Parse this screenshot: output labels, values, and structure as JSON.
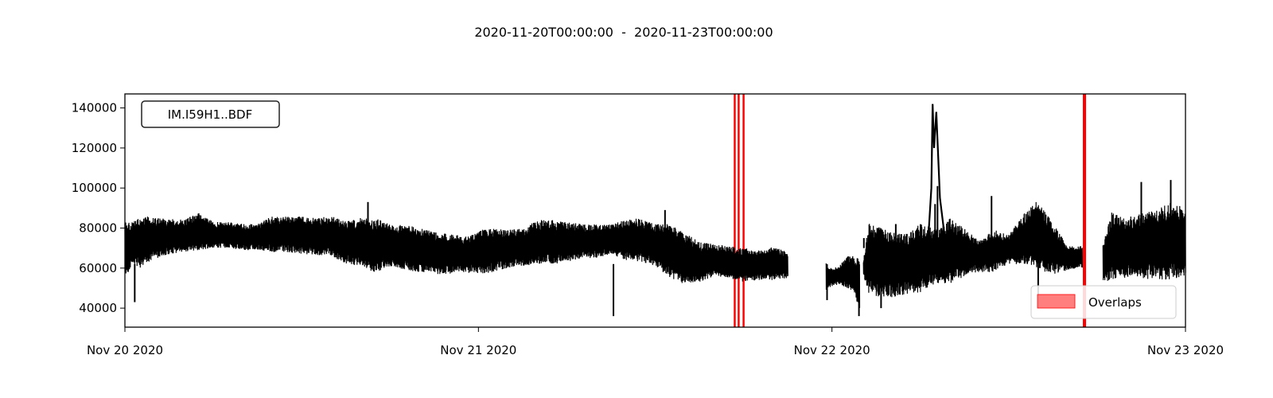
{
  "chart_data": {
    "type": "line",
    "title": "2020-11-20T00:00:00  -  2020-11-23T00:00:00",
    "station_label": "IM.I59H1..BDF",
    "xlabel": "",
    "ylabel": "",
    "xlim": [
      "2020-11-20T00:00:00",
      "2020-11-23T00:00:00"
    ],
    "ylim": [
      30500,
      147000
    ],
    "x_ticks": [
      {
        "t": "2020-11-20T00:00:00",
        "label": "Nov 20 2020"
      },
      {
        "t": "2020-11-21T00:00:00",
        "label": "Nov 21 2020"
      },
      {
        "t": "2020-11-22T00:00:00",
        "label": "Nov 22 2020"
      },
      {
        "t": "2020-11-23T00:00:00",
        "label": "Nov 23 2020"
      }
    ],
    "y_ticks": [
      {
        "v": 40000,
        "label": "40000"
      },
      {
        "v": 60000,
        "label": "60000"
      },
      {
        "v": 80000,
        "label": "80000"
      },
      {
        "v": 100000,
        "label": "100000"
      },
      {
        "v": 120000,
        "label": "120000"
      },
      {
        "v": 140000,
        "label": "140000"
      }
    ],
    "grid": false,
    "legend": {
      "position": "lower-right",
      "entries": [
        {
          "label": "Overlaps",
          "color": "#ff7f7f"
        }
      ]
    },
    "series_color": "#000000",
    "overlap_color": "#ff0000",
    "series": [
      {
        "name": "",
        "segments": [
          [
            [
              "2020-11-20T00:00:00",
              55000,
              84000
            ],
            [
              "2020-11-20T00:30:00",
              62000,
              83000
            ],
            [
              "2020-11-20T01:00:00",
              60000,
              85000
            ],
            [
              "2020-11-20T01:30:00",
              63000,
              86000
            ],
            [
              "2020-11-20T02:00:00",
              64000,
              85000
            ],
            [
              "2020-11-20T03:00:00",
              67000,
              85000
            ],
            [
              "2020-11-20T04:00:00",
              68000,
              84000
            ],
            [
              "2020-11-20T05:00:00",
              69000,
              88000
            ],
            [
              "2020-11-20T06:00:00",
              70000,
              83000
            ],
            [
              "2020-11-20T07:00:00",
              70000,
              83000
            ],
            [
              "2020-11-20T08:00:00",
              69000,
              82000
            ],
            [
              "2020-11-20T09:00:00",
              69000,
              82000
            ],
            [
              "2020-11-20T10:00:00",
              68000,
              86000
            ],
            [
              "2020-11-20T11:00:00",
              68000,
              86000
            ],
            [
              "2020-11-20T12:00:00",
              67000,
              86000
            ],
            [
              "2020-11-20T13:00:00",
              66000,
              85000
            ],
            [
              "2020-11-20T14:00:00",
              66000,
              86000
            ],
            [
              "2020-11-20T15:00:00",
              62000,
              84000
            ],
            [
              "2020-11-20T16:00:00",
              61000,
              85000
            ],
            [
              "2020-11-20T17:00:00",
              57000,
              85000
            ],
            [
              "2020-11-20T18:00:00",
              61000,
              82000
            ],
            [
              "2020-11-20T19:00:00",
              59000,
              82000
            ],
            [
              "2020-11-20T20:00:00",
              58000,
              80000
            ],
            [
              "2020-11-20T21:00:00",
              57000,
              78000
            ],
            [
              "2020-11-20T22:00:00",
              57000,
              77000
            ],
            [
              "2020-11-20T23:00:00",
              58000,
              76000
            ],
            [
              "2020-11-21T00:00:00",
              57000,
              79000
            ],
            [
              "2020-11-21T01:00:00",
              58000,
              80000
            ],
            [
              "2020-11-21T02:00:00",
              60000,
              79000
            ],
            [
              "2020-11-21T03:00:00",
              61000,
              80000
            ],
            [
              "2020-11-21T04:00:00",
              62000,
              84000
            ],
            [
              "2020-11-21T05:00:00",
              62000,
              84000
            ],
            [
              "2020-11-21T06:00:00",
              63000,
              83000
            ],
            [
              "2020-11-21T07:00:00",
              65000,
              82000
            ],
            [
              "2020-11-21T08:00:00",
              65000,
              82000
            ],
            [
              "2020-11-21T09:00:00",
              67000,
              82000
            ],
            [
              "2020-11-21T10:00:00",
              64000,
              84000
            ],
            [
              "2020-11-21T11:00:00",
              63000,
              85000
            ],
            [
              "2020-11-21T12:00:00",
              61000,
              82000
            ],
            [
              "2020-11-21T13:00:00",
              55000,
              82000
            ],
            [
              "2020-11-21T14:00:00",
              52000,
              78000
            ],
            [
              "2020-11-21T15:00:00",
              53000,
              73000
            ],
            [
              "2020-11-21T16:00:00",
              56000,
              72000
            ],
            [
              "2020-11-21T17:00:00",
              55000,
              71000
            ],
            [
              "2020-11-21T18:00:00",
              53000,
              70000
            ],
            [
              "2020-11-21T19:00:00",
              54000,
              69000
            ],
            [
              "2020-11-21T20:00:00",
              54000,
              71000
            ],
            [
              "2020-11-21T21:00:00",
              55000,
              68000
            ]
          ],
          [
            [
              "2020-11-21T23:36:00",
              49000,
              63000
            ],
            [
              "2020-11-21T23:45:00",
              50000,
              60000
            ],
            [
              "2020-11-22T00:00:00",
              51000,
              60000
            ],
            [
              "2020-11-22T00:30:00",
              52000,
              61000
            ],
            [
              "2020-11-22T01:00:00",
              50000,
              66000
            ],
            [
              "2020-11-22T01:30:00",
              48000,
              66000
            ],
            [
              "2020-11-22T01:53:00",
              37000,
              66000
            ]
          ],
          [
            [
              "2020-11-22T02:08:00",
              56000,
              64000
            ],
            [
              "2020-11-22T02:30:00",
              47000,
              83000
            ],
            [
              "2020-11-22T03:00:00",
              46000,
              81000
            ],
            [
              "2020-11-22T04:00:00",
              45000,
              78000
            ],
            [
              "2020-11-22T05:00:00",
              47000,
              77000
            ],
            [
              "2020-11-22T06:00:00",
              48000,
              82000
            ],
            [
              "2020-11-22T07:00:00",
              52000,
              80000
            ],
            [
              "2020-11-22T08:00:00",
              52000,
              85000
            ],
            [
              "2020-11-22T09:00:00",
              56000,
              80000
            ],
            [
              "2020-11-22T10:00:00",
              58000,
              74000
            ],
            [
              "2020-11-22T11:00:00",
              58000,
              79000
            ],
            [
              "2020-11-22T12:00:00",
              62000,
              77000
            ],
            [
              "2020-11-22T13:00:00",
              62000,
              87000
            ],
            [
              "2020-11-22T14:00:00",
              59000,
              94000
            ],
            [
              "2020-11-22T15:00:00",
              57000,
              83000
            ],
            [
              "2020-11-22T16:00:00",
              59000,
              71000
            ],
            [
              "2020-11-22T17:00:00",
              60000,
              71000
            ]
          ],
          [
            [
              "2020-11-22T17:00:00",
              60000,
              71000
            ]
          ],
          [
            [
              "2020-11-22T18:24:00",
              53000,
              72000
            ],
            [
              "2020-11-22T19:00:00",
              54000,
              88000
            ],
            [
              "2020-11-22T20:00:00",
              55000,
              85000
            ],
            [
              "2020-11-22T21:00:00",
              55000,
              88000
            ],
            [
              "2020-11-22T22:00:00",
              54000,
              89000
            ],
            [
              "2020-11-22T23:00:00",
              54000,
              93000
            ],
            [
              "2020-11-23T00:00:00",
              56000,
              90000
            ]
          ]
        ]
      }
    ],
    "spikes": [
      {
        "t": "2020-11-20T00:40:00",
        "v": 43000
      },
      {
        "t": "2020-11-20T16:30:00",
        "v": 93000
      },
      {
        "t": "2020-11-21T09:10:00",
        "v": 36000
      },
      {
        "t": "2020-11-21T12:40:00",
        "v": 89000
      },
      {
        "t": "2020-11-21T23:40:00",
        "v": 44000
      },
      {
        "t": "2020-11-22T01:50:00",
        "v": 36000
      },
      {
        "t": "2020-11-22T02:10:00",
        "v": 75000
      },
      {
        "t": "2020-11-22T03:20:00",
        "v": 40000
      },
      {
        "t": "2020-11-22T04:20:00",
        "v": 82000
      },
      {
        "t": "2020-11-22T07:00:00",
        "v": 92000
      },
      {
        "t": "2020-11-22T07:10:00",
        "v": 101000
      },
      {
        "t": "2020-11-22T10:50:00",
        "v": 96000
      },
      {
        "t": "2020-11-22T14:00:00",
        "v": 45000
      },
      {
        "t": "2020-11-22T21:00:00",
        "v": 103000
      },
      {
        "t": "2020-11-22T23:00:00",
        "v": 104000
      }
    ],
    "peak": [
      [
        "2020-11-22T06:30:00",
        70000
      ],
      [
        "2020-11-22T06:45:00",
        100000
      ],
      [
        "2020-11-22T06:50:00",
        142000
      ],
      [
        "2020-11-22T06:56:00",
        120000
      ],
      [
        "2020-11-22T07:05:00",
        138000
      ],
      [
        "2020-11-22T07:20:00",
        95000
      ],
      [
        "2020-11-22T07:40:00",
        75000
      ]
    ],
    "overlaps": [
      [
        "2020-11-21T17:20:00",
        "2020-11-21T17:28:00"
      ],
      [
        "2020-11-21T17:36:00",
        "2020-11-21T17:44:00"
      ],
      [
        "2020-11-21T17:56:00",
        "2020-11-21T18:04:00"
      ],
      [
        "2020-11-22T17:02:00",
        "2020-11-22T17:15:00"
      ]
    ]
  }
}
